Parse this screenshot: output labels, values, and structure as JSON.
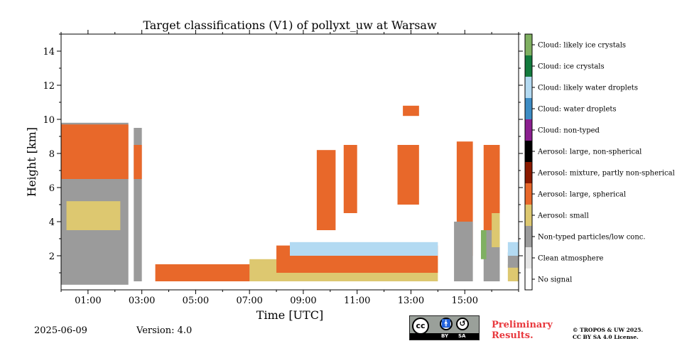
{
  "chart_data": {
    "type": "heatmap",
    "title": "Target classifications (V1) of pollyxt_uw at Warsaw",
    "xlabel": "Time [UTC]",
    "ylabel": "Height [km]",
    "xlim": [
      0,
      17
    ],
    "ylim": [
      0,
      15
    ],
    "x_unit": "hours UTC",
    "x_ticks": [
      "01:00",
      "03:00",
      "05:00",
      "07:00",
      "09:00",
      "11:00",
      "13:00",
      "15:00"
    ],
    "x_tick_hours": [
      1,
      3,
      5,
      7,
      9,
      11,
      13,
      15
    ],
    "y_ticks": [
      2,
      4,
      6,
      8,
      10,
      12,
      14
    ],
    "grid": false,
    "colorbar": {
      "position": "right",
      "classes": [
        {
          "label": "No signal",
          "color": "#ffffff"
        },
        {
          "label": "Clean atmosphere",
          "color": "#e6e6e6"
        },
        {
          "label": "Non-typed particles/low conc.",
          "color": "#9b9b9b"
        },
        {
          "label": "Aerosol: small",
          "color": "#ddc870"
        },
        {
          "label": "Aerosol: large, spherical",
          "color": "#e8682a"
        },
        {
          "label": "Aerosol: mixture, partly non-spherical",
          "color": "#8b1a00"
        },
        {
          "label": "Aerosol: large, non-spherical",
          "color": "#000000"
        },
        {
          "label": "Cloud: non-typed",
          "color": "#8b1f8f"
        },
        {
          "label": "Cloud: water droplets",
          "color": "#3d8cc4"
        },
        {
          "label": "Cloud: likely water droplets",
          "color": "#b3daf2"
        },
        {
          "label": "Cloud: ice crystals",
          "color": "#137a3d"
        },
        {
          "label": "Cloud: likely ice crystals",
          "color": "#7fb061"
        }
      ]
    },
    "layers": [
      {
        "class": "Non-typed particles/low conc.",
        "x": [
          0.0,
          2.5
        ],
        "y": [
          0.3,
          9.8
        ]
      },
      {
        "class": "Aerosol: large, spherical",
        "x": [
          0.0,
          2.5
        ],
        "y": [
          6.5,
          9.7
        ]
      },
      {
        "class": "Aerosol: small",
        "x": [
          0.2,
          2.2
        ],
        "y": [
          3.5,
          5.2
        ]
      },
      {
        "class": "Non-typed particles/low conc.",
        "x": [
          2.7,
          3.0
        ],
        "y": [
          0.5,
          9.5
        ]
      },
      {
        "class": "Aerosol: large, spherical",
        "x": [
          2.7,
          3.0
        ],
        "y": [
          6.5,
          8.5
        ]
      },
      {
        "class": "Aerosol: large, spherical",
        "x": [
          3.5,
          7.5
        ],
        "y": [
          0.5,
          1.5
        ]
      },
      {
        "class": "Aerosol: small",
        "x": [
          7.0,
          14.0
        ],
        "y": [
          0.5,
          1.8
        ]
      },
      {
        "class": "Aerosol: large, spherical",
        "x": [
          8.0,
          14.0
        ],
        "y": [
          1.0,
          2.6
        ]
      },
      {
        "class": "Cloud: likely water droplets",
        "x": [
          8.5,
          14.0
        ],
        "y": [
          2.0,
          2.8
        ]
      },
      {
        "class": "Aerosol: large, spherical",
        "x": [
          9.5,
          10.2
        ],
        "y": [
          3.5,
          8.2
        ]
      },
      {
        "class": "Aerosol: large, spherical",
        "x": [
          10.5,
          11.0
        ],
        "y": [
          4.5,
          8.5
        ]
      },
      {
        "class": "Aerosol: large, spherical",
        "x": [
          12.5,
          13.3
        ],
        "y": [
          5.0,
          8.5
        ]
      },
      {
        "class": "Aerosol: large, spherical",
        "x": [
          12.7,
          13.3
        ],
        "y": [
          10.2,
          10.8
        ]
      },
      {
        "class": "Aerosol: large, spherical",
        "x": [
          14.7,
          15.3
        ],
        "y": [
          2.0,
          8.7
        ]
      },
      {
        "class": "Non-typed particles/low conc.",
        "x": [
          14.6,
          15.3
        ],
        "y": [
          0.5,
          4.0
        ]
      },
      {
        "class": "Aerosol: large, spherical",
        "x": [
          15.7,
          16.3
        ],
        "y": [
          3.5,
          8.5
        ]
      },
      {
        "class": "Non-typed particles/low conc.",
        "x": [
          15.7,
          16.3
        ],
        "y": [
          0.5,
          3.5
        ]
      },
      {
        "class": "Cloud: likely ice crystals",
        "x": [
          15.6,
          15.8
        ],
        "y": [
          1.8,
          3.5
        ]
      },
      {
        "class": "Aerosol: small",
        "x": [
          16.0,
          16.3
        ],
        "y": [
          2.5,
          4.5
        ]
      },
      {
        "class": "Aerosol: small",
        "x": [
          16.6,
          17.0
        ],
        "y": [
          0.5,
          1.5
        ]
      },
      {
        "class": "Non-typed particles/low conc.",
        "x": [
          16.6,
          17.0
        ],
        "y": [
          1.3,
          2.2
        ]
      },
      {
        "class": "Cloud: likely water droplets",
        "x": [
          16.6,
          17.0
        ],
        "y": [
          2.0,
          2.8
        ]
      }
    ]
  },
  "footer": {
    "date": "2025-06-09",
    "version": "Version: 4.0",
    "preliminary_line1": "Preliminary",
    "preliminary_line2": "Results.",
    "copyright_line1": "© TROPOS & UW 2025.",
    "copyright_line2": "CC BY SA 4.0 License.",
    "license_badge": {
      "cc": "cc",
      "by": "BY",
      "sa": "SA"
    }
  }
}
